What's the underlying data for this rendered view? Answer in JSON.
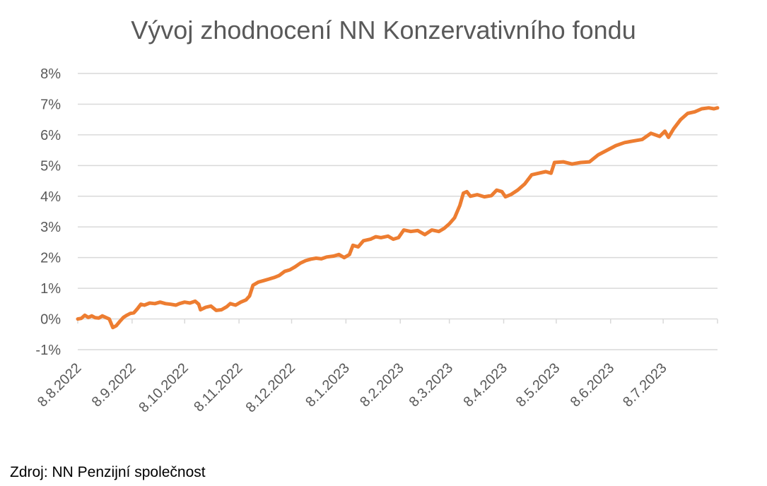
{
  "chart_data": {
    "type": "line",
    "title": "Vývoj zhodnocení NN Konzervativního fondu",
    "xlabel": "",
    "ylabel": "",
    "x_tick_labels": [
      "8.8.2022",
      "8.9.2022",
      "8.10.2022",
      "8.11.2022",
      "8.12.2022",
      "8.1.2023",
      "8.2.2023",
      "8.3.2023",
      "8.4.2023",
      "8.5.2023",
      "8.6.2023",
      "8.7.2023"
    ],
    "y_tick_labels": [
      "-1%",
      "0%",
      "1%",
      "2%",
      "3%",
      "4%",
      "5%",
      "6%",
      "7%",
      "8%"
    ],
    "ylim": [
      -1,
      8
    ],
    "y_unit": "%",
    "grid": "horizontal",
    "legend": "none",
    "series": [
      {
        "color": "#ED7D31",
        "points": [
          [
            "2022-08-08",
            0.0
          ],
          [
            "2022-08-10",
            0.02
          ],
          [
            "2022-08-12",
            0.12
          ],
          [
            "2022-08-14",
            0.05
          ],
          [
            "2022-08-16",
            0.1
          ],
          [
            "2022-08-18",
            0.04
          ],
          [
            "2022-08-20",
            0.03
          ],
          [
            "2022-08-22",
            0.1
          ],
          [
            "2022-08-24",
            0.05
          ],
          [
            "2022-08-26",
            0.0
          ],
          [
            "2022-08-28",
            -0.28
          ],
          [
            "2022-08-30",
            -0.22
          ],
          [
            "2022-09-01",
            -0.08
          ],
          [
            "2022-09-03",
            0.05
          ],
          [
            "2022-09-05",
            0.12
          ],
          [
            "2022-09-07",
            0.18
          ],
          [
            "2022-09-09",
            0.2
          ],
          [
            "2022-09-11",
            0.33
          ],
          [
            "2022-09-13",
            0.48
          ],
          [
            "2022-09-15",
            0.45
          ],
          [
            "2022-09-18",
            0.52
          ],
          [
            "2022-09-21",
            0.5
          ],
          [
            "2022-09-24",
            0.55
          ],
          [
            "2022-09-27",
            0.5
          ],
          [
            "2022-09-30",
            0.48
          ],
          [
            "2022-10-03",
            0.45
          ],
          [
            "2022-10-05",
            0.5
          ],
          [
            "2022-10-08",
            0.55
          ],
          [
            "2022-10-11",
            0.52
          ],
          [
            "2022-10-14",
            0.58
          ],
          [
            "2022-10-16",
            0.48
          ],
          [
            "2022-10-17",
            0.3
          ],
          [
            "2022-10-20",
            0.38
          ],
          [
            "2022-10-23",
            0.42
          ],
          [
            "2022-10-26",
            0.28
          ],
          [
            "2022-10-29",
            0.3
          ],
          [
            "2022-11-01",
            0.4
          ],
          [
            "2022-11-03",
            0.5
          ],
          [
            "2022-11-06",
            0.45
          ],
          [
            "2022-11-09",
            0.55
          ],
          [
            "2022-11-12",
            0.62
          ],
          [
            "2022-11-14",
            0.75
          ],
          [
            "2022-11-16",
            1.1
          ],
          [
            "2022-11-19",
            1.2
          ],
          [
            "2022-11-22",
            1.25
          ],
          [
            "2022-11-25",
            1.3
          ],
          [
            "2022-11-28",
            1.35
          ],
          [
            "2022-12-01",
            1.42
          ],
          [
            "2022-12-04",
            1.55
          ],
          [
            "2022-12-07",
            1.6
          ],
          [
            "2022-12-10",
            1.7
          ],
          [
            "2022-12-13",
            1.82
          ],
          [
            "2022-12-16",
            1.9
          ],
          [
            "2022-12-19",
            1.95
          ],
          [
            "2022-12-22",
            1.98
          ],
          [
            "2022-12-25",
            1.96
          ],
          [
            "2022-12-28",
            2.02
          ],
          [
            "2023-01-01",
            2.05
          ],
          [
            "2023-01-04",
            2.1
          ],
          [
            "2023-01-07",
            2.0
          ],
          [
            "2023-01-10",
            2.1
          ],
          [
            "2023-01-12",
            2.4
          ],
          [
            "2023-01-15",
            2.35
          ],
          [
            "2023-01-18",
            2.55
          ],
          [
            "2023-01-22",
            2.6
          ],
          [
            "2023-01-25",
            2.68
          ],
          [
            "2023-01-28",
            2.65
          ],
          [
            "2023-02-01",
            2.7
          ],
          [
            "2023-02-04",
            2.6
          ],
          [
            "2023-02-07",
            2.65
          ],
          [
            "2023-02-10",
            2.9
          ],
          [
            "2023-02-14",
            2.85
          ],
          [
            "2023-02-18",
            2.88
          ],
          [
            "2023-02-22",
            2.75
          ],
          [
            "2023-02-26",
            2.9
          ],
          [
            "2023-03-02",
            2.85
          ],
          [
            "2023-03-05",
            2.95
          ],
          [
            "2023-03-08",
            3.1
          ],
          [
            "2023-03-11",
            3.3
          ],
          [
            "2023-03-14",
            3.7
          ],
          [
            "2023-03-16",
            4.1
          ],
          [
            "2023-03-18",
            4.15
          ],
          [
            "2023-03-20",
            4.0
          ],
          [
            "2023-03-24",
            4.05
          ],
          [
            "2023-03-28",
            3.98
          ],
          [
            "2023-04-01",
            4.02
          ],
          [
            "2023-04-04",
            4.2
          ],
          [
            "2023-04-07",
            4.15
          ],
          [
            "2023-04-09",
            3.98
          ],
          [
            "2023-04-12",
            4.05
          ],
          [
            "2023-04-16",
            4.2
          ],
          [
            "2023-04-20",
            4.4
          ],
          [
            "2023-04-24",
            4.7
          ],
          [
            "2023-04-28",
            4.75
          ],
          [
            "2023-05-02",
            4.8
          ],
          [
            "2023-05-05",
            4.75
          ],
          [
            "2023-05-07",
            5.1
          ],
          [
            "2023-05-12",
            5.12
          ],
          [
            "2023-05-17",
            5.05
          ],
          [
            "2023-05-22",
            5.1
          ],
          [
            "2023-05-27",
            5.12
          ],
          [
            "2023-06-01",
            5.35
          ],
          [
            "2023-06-06",
            5.5
          ],
          [
            "2023-06-11",
            5.65
          ],
          [
            "2023-06-16",
            5.75
          ],
          [
            "2023-06-21",
            5.8
          ],
          [
            "2023-06-26",
            5.85
          ],
          [
            "2023-07-01",
            6.05
          ],
          [
            "2023-07-06",
            5.95
          ],
          [
            "2023-07-09",
            6.12
          ],
          [
            "2023-07-11",
            5.92
          ],
          [
            "2023-07-14",
            6.2
          ],
          [
            "2023-07-18",
            6.5
          ],
          [
            "2023-07-22",
            6.7
          ],
          [
            "2023-07-26",
            6.75
          ],
          [
            "2023-07-30",
            6.85
          ],
          [
            "2023-08-03",
            6.88
          ],
          [
            "2023-08-06",
            6.85
          ],
          [
            "2023-08-08",
            6.88
          ]
        ]
      }
    ]
  },
  "footer": {
    "source": "Zdroj: NN Penzijní společnost"
  }
}
